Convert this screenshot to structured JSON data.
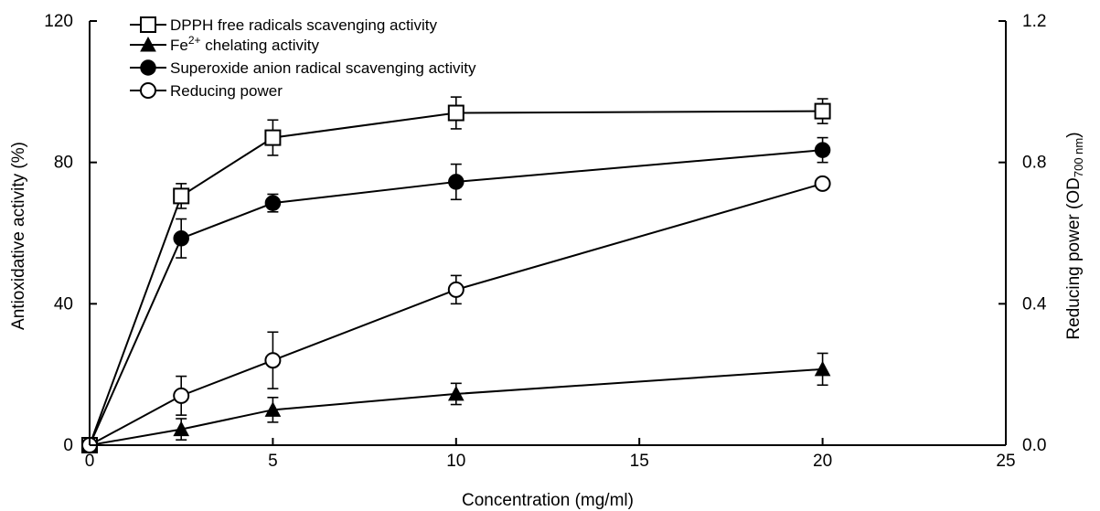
{
  "chart_data": {
    "type": "line",
    "title": "",
    "xlabel": "Concentration (mg/ml)",
    "ylabel": "Antioxidative activity (%)",
    "y2label": {
      "main": "Reducing power (OD",
      "sub": "700 nm",
      "close": ")"
    },
    "xlim": [
      0,
      25
    ],
    "ylim": [
      0,
      120
    ],
    "y2lim": [
      0,
      1.2
    ],
    "xticks": [
      "0",
      "5",
      "10",
      "15",
      "20",
      "25"
    ],
    "xtick_values": [
      0,
      5,
      10,
      15,
      20,
      25
    ],
    "yticks": [
      "0",
      "40",
      "80",
      "120"
    ],
    "ytick_values": [
      0,
      40,
      80,
      120
    ],
    "y2ticks": [
      "0.0",
      "0.4",
      "0.8",
      "1.2"
    ],
    "y2tick_values": [
      0,
      0.4,
      0.8,
      1.2
    ],
    "grid": false,
    "legend_position": "top-left",
    "x": [
      0,
      2.5,
      5,
      10,
      20
    ],
    "series": [
      {
        "name": "DPPH free radicals scavenging activity",
        "marker": "open-square",
        "axis": "left",
        "values": [
          0,
          70.5,
          87,
          94,
          94.5
        ],
        "errors": [
          0,
          3.5,
          5,
          4.5,
          3.5
        ]
      },
      {
        "name": "Fe2+ chelating activity",
        "name_parts": {
          "base": "Fe",
          "sup": "2+",
          "rest": "  chelating activity"
        },
        "marker": "filled-triangle",
        "axis": "left",
        "values": [
          0,
          4.5,
          10,
          14.5,
          21.5
        ],
        "errors": [
          0,
          3,
          3.5,
          3,
          4.5
        ]
      },
      {
        "name": "Superoxide anion radical scavenging activity",
        "marker": "filled-circle",
        "axis": "left",
        "values": [
          0,
          58.5,
          68.5,
          74.5,
          83.5
        ],
        "errors": [
          0,
          5.5,
          2.5,
          5,
          3.5
        ]
      },
      {
        "name": "Reducing power",
        "marker": "open-circle",
        "axis": "right",
        "values": [
          0,
          0.14,
          0.24,
          0.44,
          0.74
        ],
        "errors": [
          0,
          0.055,
          0.08,
          0.04,
          0
        ]
      }
    ]
  }
}
